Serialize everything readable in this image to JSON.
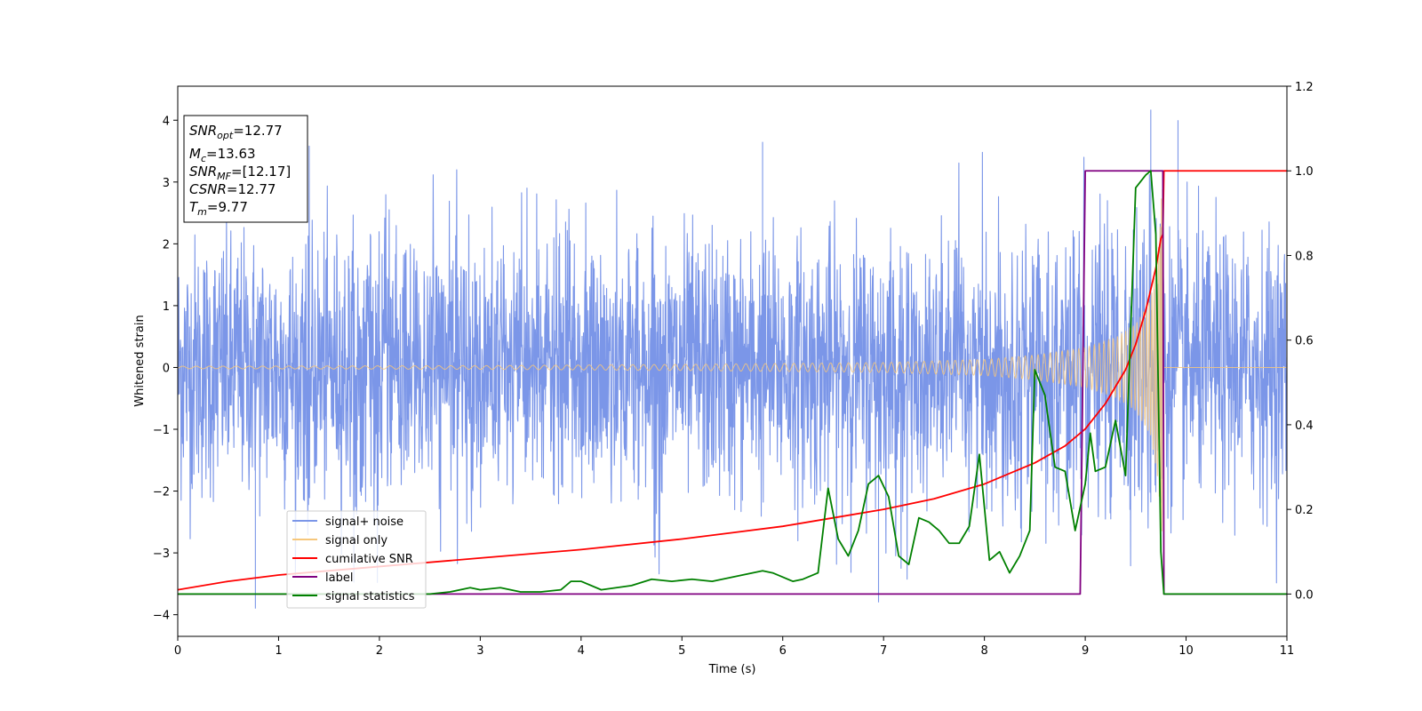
{
  "chart_data": {
    "type": "line",
    "xlabel": "Time (s)",
    "ylabel": "Whitened strain",
    "xlim": [
      0,
      11
    ],
    "ylim": [
      -4.35,
      4.55
    ],
    "y2lim": [
      -0.1,
      1.2
    ],
    "xticks": [
      "0",
      "1",
      "2",
      "3",
      "4",
      "5",
      "6",
      "7",
      "8",
      "9",
      "10",
      "11"
    ],
    "yticks": [
      "−4",
      "−3",
      "−2",
      "−1",
      "0",
      "1",
      "2",
      "3",
      "4"
    ],
    "y2ticks": [
      "0.0",
      "0.2",
      "0.4",
      "0.6",
      "0.8",
      "1.0",
      "1.2"
    ],
    "legend_placement": "lower-left",
    "grid": false,
    "info_box": {
      "snr_opt": {
        "base": "SNR",
        "sub": "opt",
        "value": "=12.77"
      },
      "mc": {
        "base": "M",
        "sub": "c",
        "value": "=13.63"
      },
      "snr_mf": {
        "base": "SNR",
        "sub": "MF",
        "value": "=[12.17]"
      },
      "csnr": {
        "base": "CSNR",
        "sub": "",
        "value": "=12.77"
      },
      "tm": {
        "base": "T",
        "sub": "m",
        "value": "=9.77"
      }
    },
    "series": [
      {
        "name": "signal+ noise",
        "axis": "left",
        "color": "#7b96e8",
        "noise_sigma": 1.0,
        "extreme_spikes": [
          [
            0.77,
            -3.9
          ],
          [
            5.8,
            3.65
          ],
          [
            9.65,
            4.17
          ],
          [
            9.92,
            4.0
          ],
          [
            6.95,
            -3.8
          ]
        ]
      },
      {
        "name": "signal only",
        "axis": "left",
        "color": "#f6c77c",
        "chirp_start": 0.0,
        "chirp_merger": 9.77,
        "amplitude_start": 0.02,
        "amplitude_peak": 3.1,
        "peak_amplitude_points": [
          [
            0,
            0.02
          ],
          [
            3,
            0.03
          ],
          [
            5,
            0.05
          ],
          [
            7,
            0.08
          ],
          [
            8,
            0.13
          ],
          [
            8.5,
            0.2
          ],
          [
            9,
            0.32
          ],
          [
            9.3,
            0.48
          ],
          [
            9.5,
            0.7
          ],
          [
            9.65,
            1.1
          ],
          [
            9.72,
            1.8
          ],
          [
            9.75,
            2.6
          ],
          [
            9.77,
            3.1
          ]
        ]
      },
      {
        "name": "cumilative SNR",
        "axis": "right",
        "color": "#ff0000",
        "x": [
          0,
          0.5,
          1,
          2,
          3,
          4,
          5,
          5.5,
          6,
          6.5,
          7,
          7.5,
          8,
          8.5,
          8.8,
          9.0,
          9.2,
          9.4,
          9.5,
          9.6,
          9.7,
          9.75,
          9.77,
          9.78,
          11
        ],
        "y": [
          0.01,
          0.03,
          0.045,
          0.065,
          0.085,
          0.105,
          0.13,
          0.145,
          0.16,
          0.18,
          0.2,
          0.225,
          0.26,
          0.31,
          0.35,
          0.39,
          0.45,
          0.53,
          0.59,
          0.67,
          0.77,
          0.84,
          0.85,
          1.0,
          1.0
        ]
      },
      {
        "name": "label",
        "axis": "right",
        "color": "#800080",
        "x": [
          0,
          8.95,
          9.0,
          9.77,
          9.78,
          11
        ],
        "y": [
          0.0,
          0.0,
          1.0,
          1.0,
          0.0,
          0.0
        ]
      },
      {
        "name": "signal statistics",
        "axis": "right",
        "color": "#008000",
        "x": [
          0,
          0.5,
          1,
          1.5,
          2,
          2.5,
          2.7,
          2.9,
          3.0,
          3.2,
          3.4,
          3.6,
          3.8,
          3.9,
          4.0,
          4.2,
          4.5,
          4.7,
          4.9,
          5.1,
          5.3,
          5.5,
          5.7,
          5.8,
          5.9,
          6.0,
          6.1,
          6.2,
          6.35,
          6.45,
          6.55,
          6.65,
          6.75,
          6.85,
          6.95,
          7.05,
          7.15,
          7.25,
          7.35,
          7.45,
          7.55,
          7.65,
          7.75,
          7.85,
          7.95,
          8.05,
          8.15,
          8.25,
          8.35,
          8.45,
          8.5,
          8.6,
          8.7,
          8.8,
          8.9,
          9.0,
          9.05,
          9.1,
          9.2,
          9.3,
          9.4,
          9.5,
          9.6,
          9.65,
          9.7,
          9.75,
          9.78,
          9.8,
          11
        ],
        "y": [
          0.0,
          0.0,
          0.0,
          0.0,
          0.0,
          0.0,
          0.005,
          0.015,
          0.01,
          0.015,
          0.005,
          0.005,
          0.01,
          0.03,
          0.03,
          0.01,
          0.02,
          0.035,
          0.03,
          0.035,
          0.03,
          0.04,
          0.05,
          0.055,
          0.05,
          0.04,
          0.03,
          0.035,
          0.05,
          0.25,
          0.13,
          0.09,
          0.15,
          0.26,
          0.28,
          0.23,
          0.09,
          0.07,
          0.18,
          0.17,
          0.15,
          0.12,
          0.12,
          0.16,
          0.33,
          0.08,
          0.1,
          0.05,
          0.09,
          0.15,
          0.53,
          0.47,
          0.3,
          0.29,
          0.15,
          0.26,
          0.38,
          0.29,
          0.3,
          0.41,
          0.28,
          0.96,
          0.99,
          1.0,
          0.85,
          0.1,
          0.0,
          0.0,
          0.0
        ]
      }
    ]
  }
}
